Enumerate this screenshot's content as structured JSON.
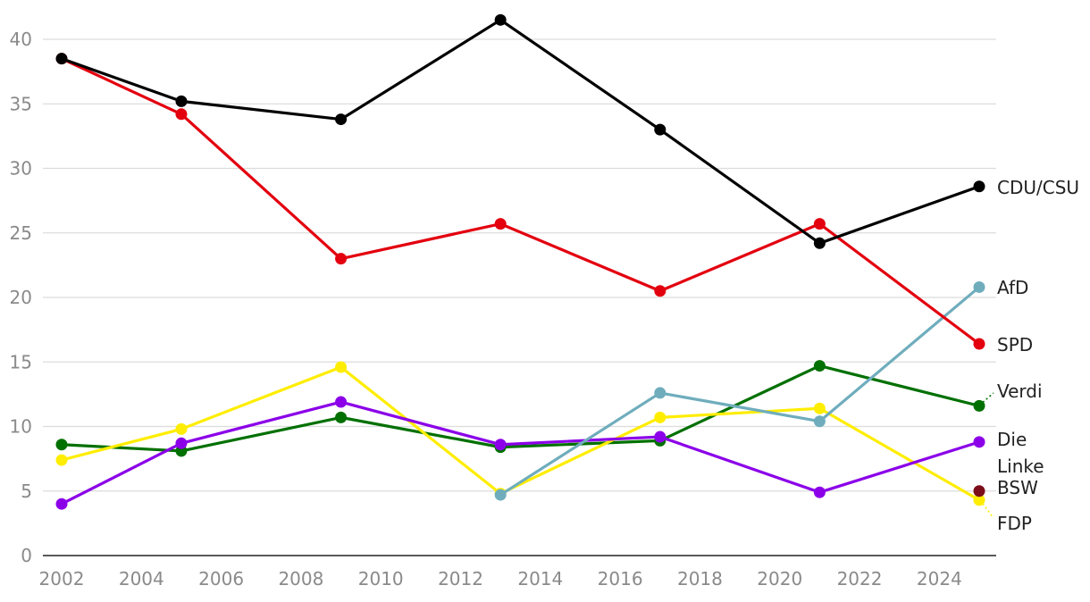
{
  "chart_data": {
    "type": "line",
    "title": "",
    "xlabel": "",
    "ylabel": "",
    "xlim": [
      2002,
      2025
    ],
    "ylim": [
      0,
      40
    ],
    "x_ticks": [
      "2002",
      "2004",
      "2006",
      "2008",
      "2010",
      "2012",
      "2014",
      "2016",
      "2018",
      "2020",
      "2022",
      "2024"
    ],
    "y_ticks": [
      "0",
      "5",
      "10",
      "15",
      "20",
      "25",
      "30",
      "35",
      "40"
    ],
    "grid": true,
    "legend": "direct labels at right end of lines",
    "series": [
      {
        "name": "CDU/CSU",
        "color": "#000000",
        "x": [
          2002,
          2005,
          2009,
          2013,
          2017,
          2021,
          2025
        ],
        "values": [
          38.5,
          35.2,
          33.8,
          41.5,
          33.0,
          24.2,
          28.6
        ]
      },
      {
        "name": "SPD",
        "color": "#e3000f",
        "x": [
          2002,
          2005,
          2009,
          2013,
          2017,
          2021,
          2025
        ],
        "values": [
          38.5,
          34.2,
          23.0,
          25.7,
          20.5,
          25.7,
          16.4
        ]
      },
      {
        "name": "FDP",
        "color": "#ffed00",
        "x": [
          2002,
          2005,
          2009,
          2013,
          2017,
          2021,
          2025
        ],
        "values": [
          7.4,
          9.8,
          14.6,
          4.8,
          10.7,
          11.4,
          4.3
        ]
      },
      {
        "name": "Verdi",
        "color": "#007000",
        "x": [
          2002,
          2005,
          2009,
          2013,
          2017,
          2021,
          2025
        ],
        "values": [
          8.6,
          8.1,
          10.7,
          8.4,
          8.9,
          14.7,
          11.6
        ]
      },
      {
        "name": "Die Linke",
        "color": "#8b00e8",
        "x": [
          2002,
          2005,
          2009,
          2013,
          2017,
          2021,
          2025
        ],
        "values": [
          4.0,
          8.7,
          11.9,
          8.6,
          9.2,
          4.9,
          8.8
        ]
      },
      {
        "name": "AfD",
        "color": "#6fadbd",
        "x": [
          2013,
          2017,
          2021,
          2025
        ],
        "values": [
          4.7,
          12.6,
          10.4,
          20.8
        ]
      },
      {
        "name": "BSW",
        "color": "#7b0d1a",
        "x": [
          2025
        ],
        "values": [
          5.0
        ]
      }
    ],
    "end_labels": [
      {
        "series": "CDU/CSU",
        "text": "CDU/CSU"
      },
      {
        "series": "AfD",
        "text": "AfD"
      },
      {
        "series": "SPD",
        "text": "SPD"
      },
      {
        "series": "Verdi",
        "text": "Verdi"
      },
      {
        "series": "Die Linke",
        "text": "Die"
      },
      {
        "series": "Die Linke",
        "text": "Linke"
      },
      {
        "series": "BSW",
        "text": "BSW"
      },
      {
        "series": "FDP",
        "text": "FDP"
      }
    ]
  }
}
